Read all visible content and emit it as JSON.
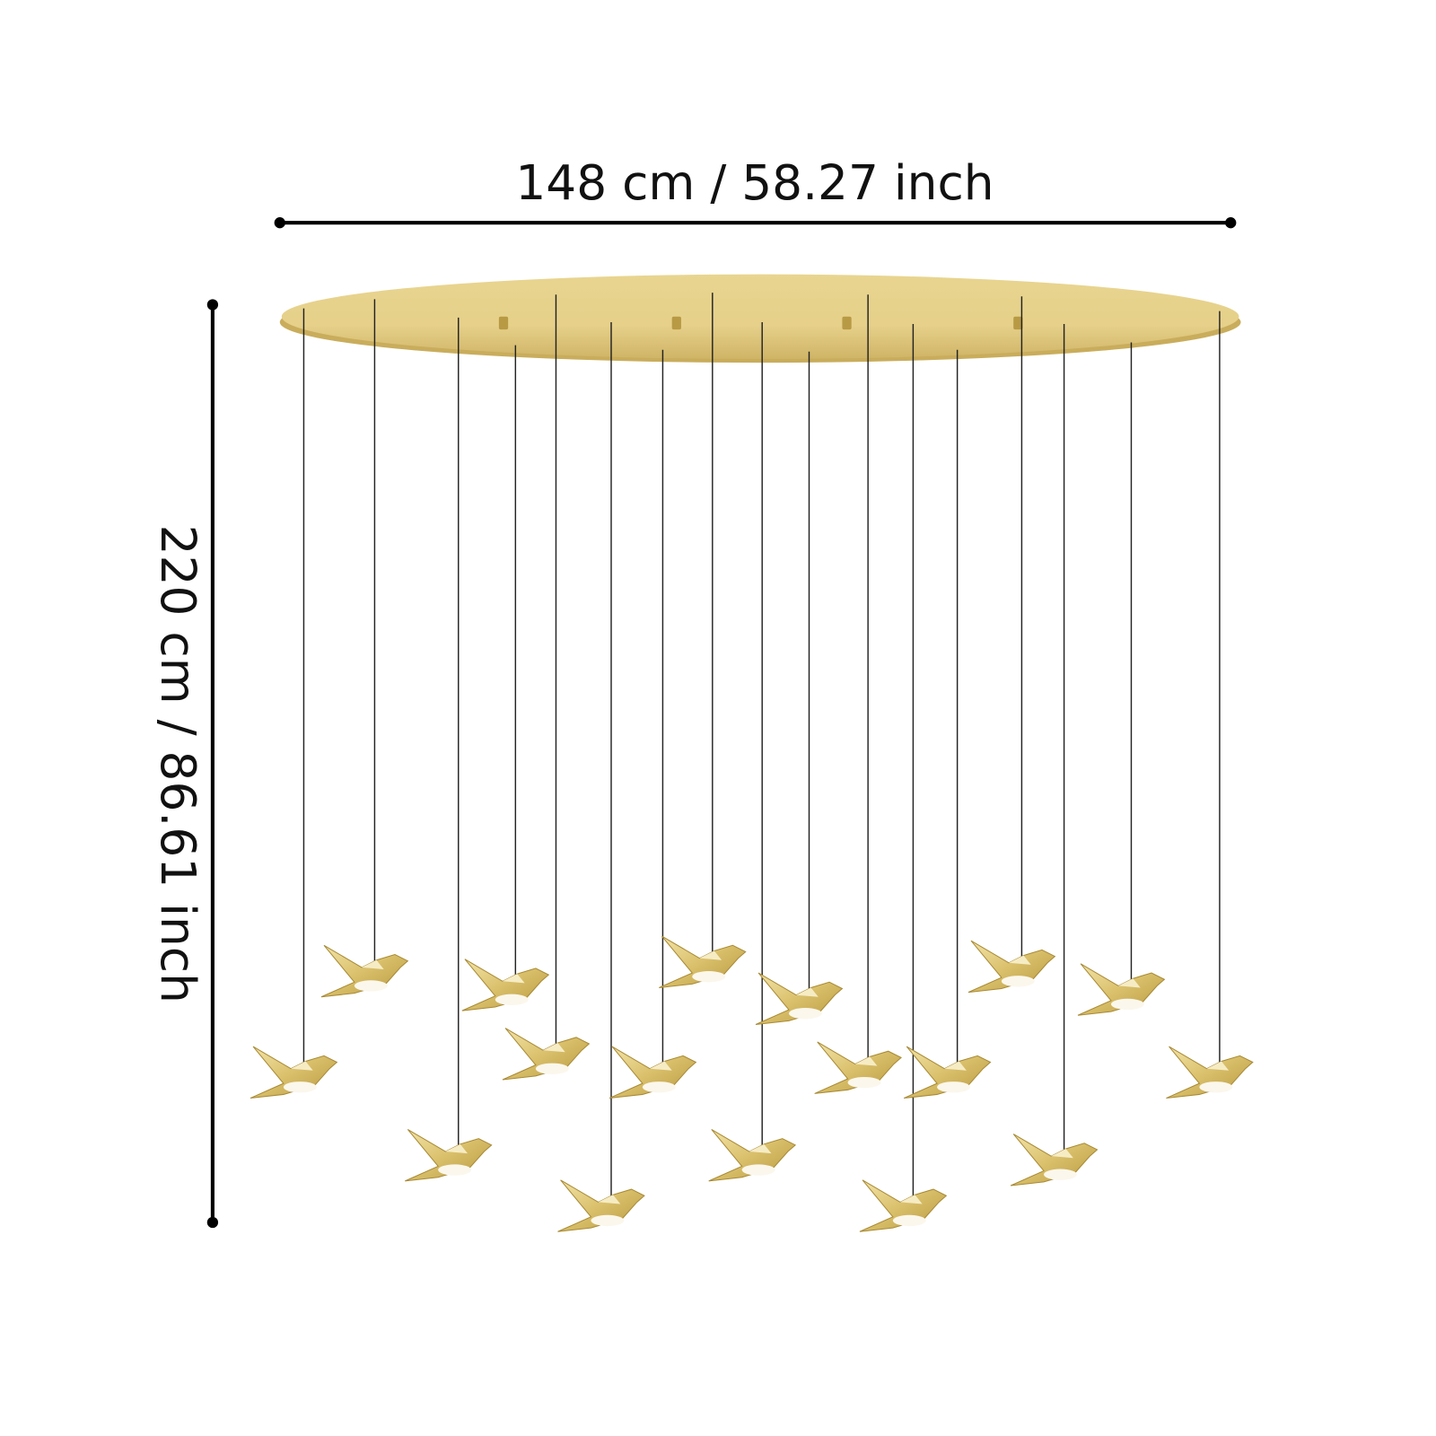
{
  "dimensions": {
    "width": "148 cm / 58.27 inch",
    "height": "220 cm / 86.61 inch"
  }
}
